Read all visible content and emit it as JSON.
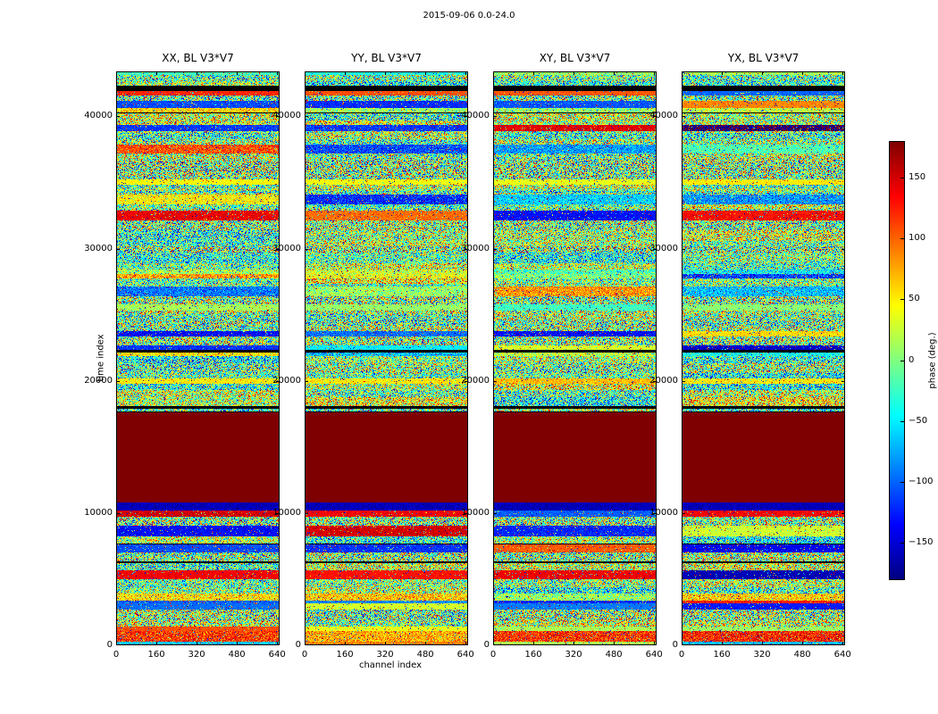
{
  "chart_data": {
    "type": "heatmap",
    "title": "2015-09-06 0.0-24.0",
    "xlabel": "channel index",
    "ylabel": "time index",
    "panels": [
      {
        "title": "XX, BL V3*V7",
        "key": "xx"
      },
      {
        "title": "YY, BL V3*V7",
        "key": "yy"
      },
      {
        "title": "XY, BL V3*V7",
        "key": "xy"
      },
      {
        "title": "YX, BL V3*V7",
        "key": "yx"
      }
    ],
    "x_ticks": [
      0,
      160,
      320,
      480,
      640
    ],
    "x_tick_labels": [
      "0",
      "160",
      "320",
      "480",
      "640"
    ],
    "y_ticks": [
      0,
      10000,
      20000,
      30000,
      40000
    ],
    "y_tick_labels": [
      "0",
      "10000",
      "20000",
      "30000",
      "40000"
    ],
    "xlim": [
      0,
      650
    ],
    "ylim": [
      0,
      43400
    ],
    "grid": false,
    "colorbar": {
      "label": "phase (deg.)",
      "vmin": -180,
      "vmax": 180,
      "ticks": [
        150,
        100,
        50,
        0,
        -50,
        -100,
        -150
      ],
      "tick_labels": [
        "150",
        "100",
        "50",
        "0",
        "−50",
        "−100",
        "−150"
      ],
      "colormap": "jet"
    },
    "features": {
      "saturated_band_time_range": [
        10800,
        17600
      ],
      "content": "random interferometric phase noise vs channel index and time index with strong horizontal time-banding; a solid dark-red saturated block spans all channels between time index ~10800 and ~17600 in all four polarization panels; scattered black flagged time rows and coherent colored bands appear at the same times in every panel"
    }
  },
  "colors": {
    "background": "#ffffff",
    "axes": "#000000",
    "saturated_block": "#7f0000"
  }
}
